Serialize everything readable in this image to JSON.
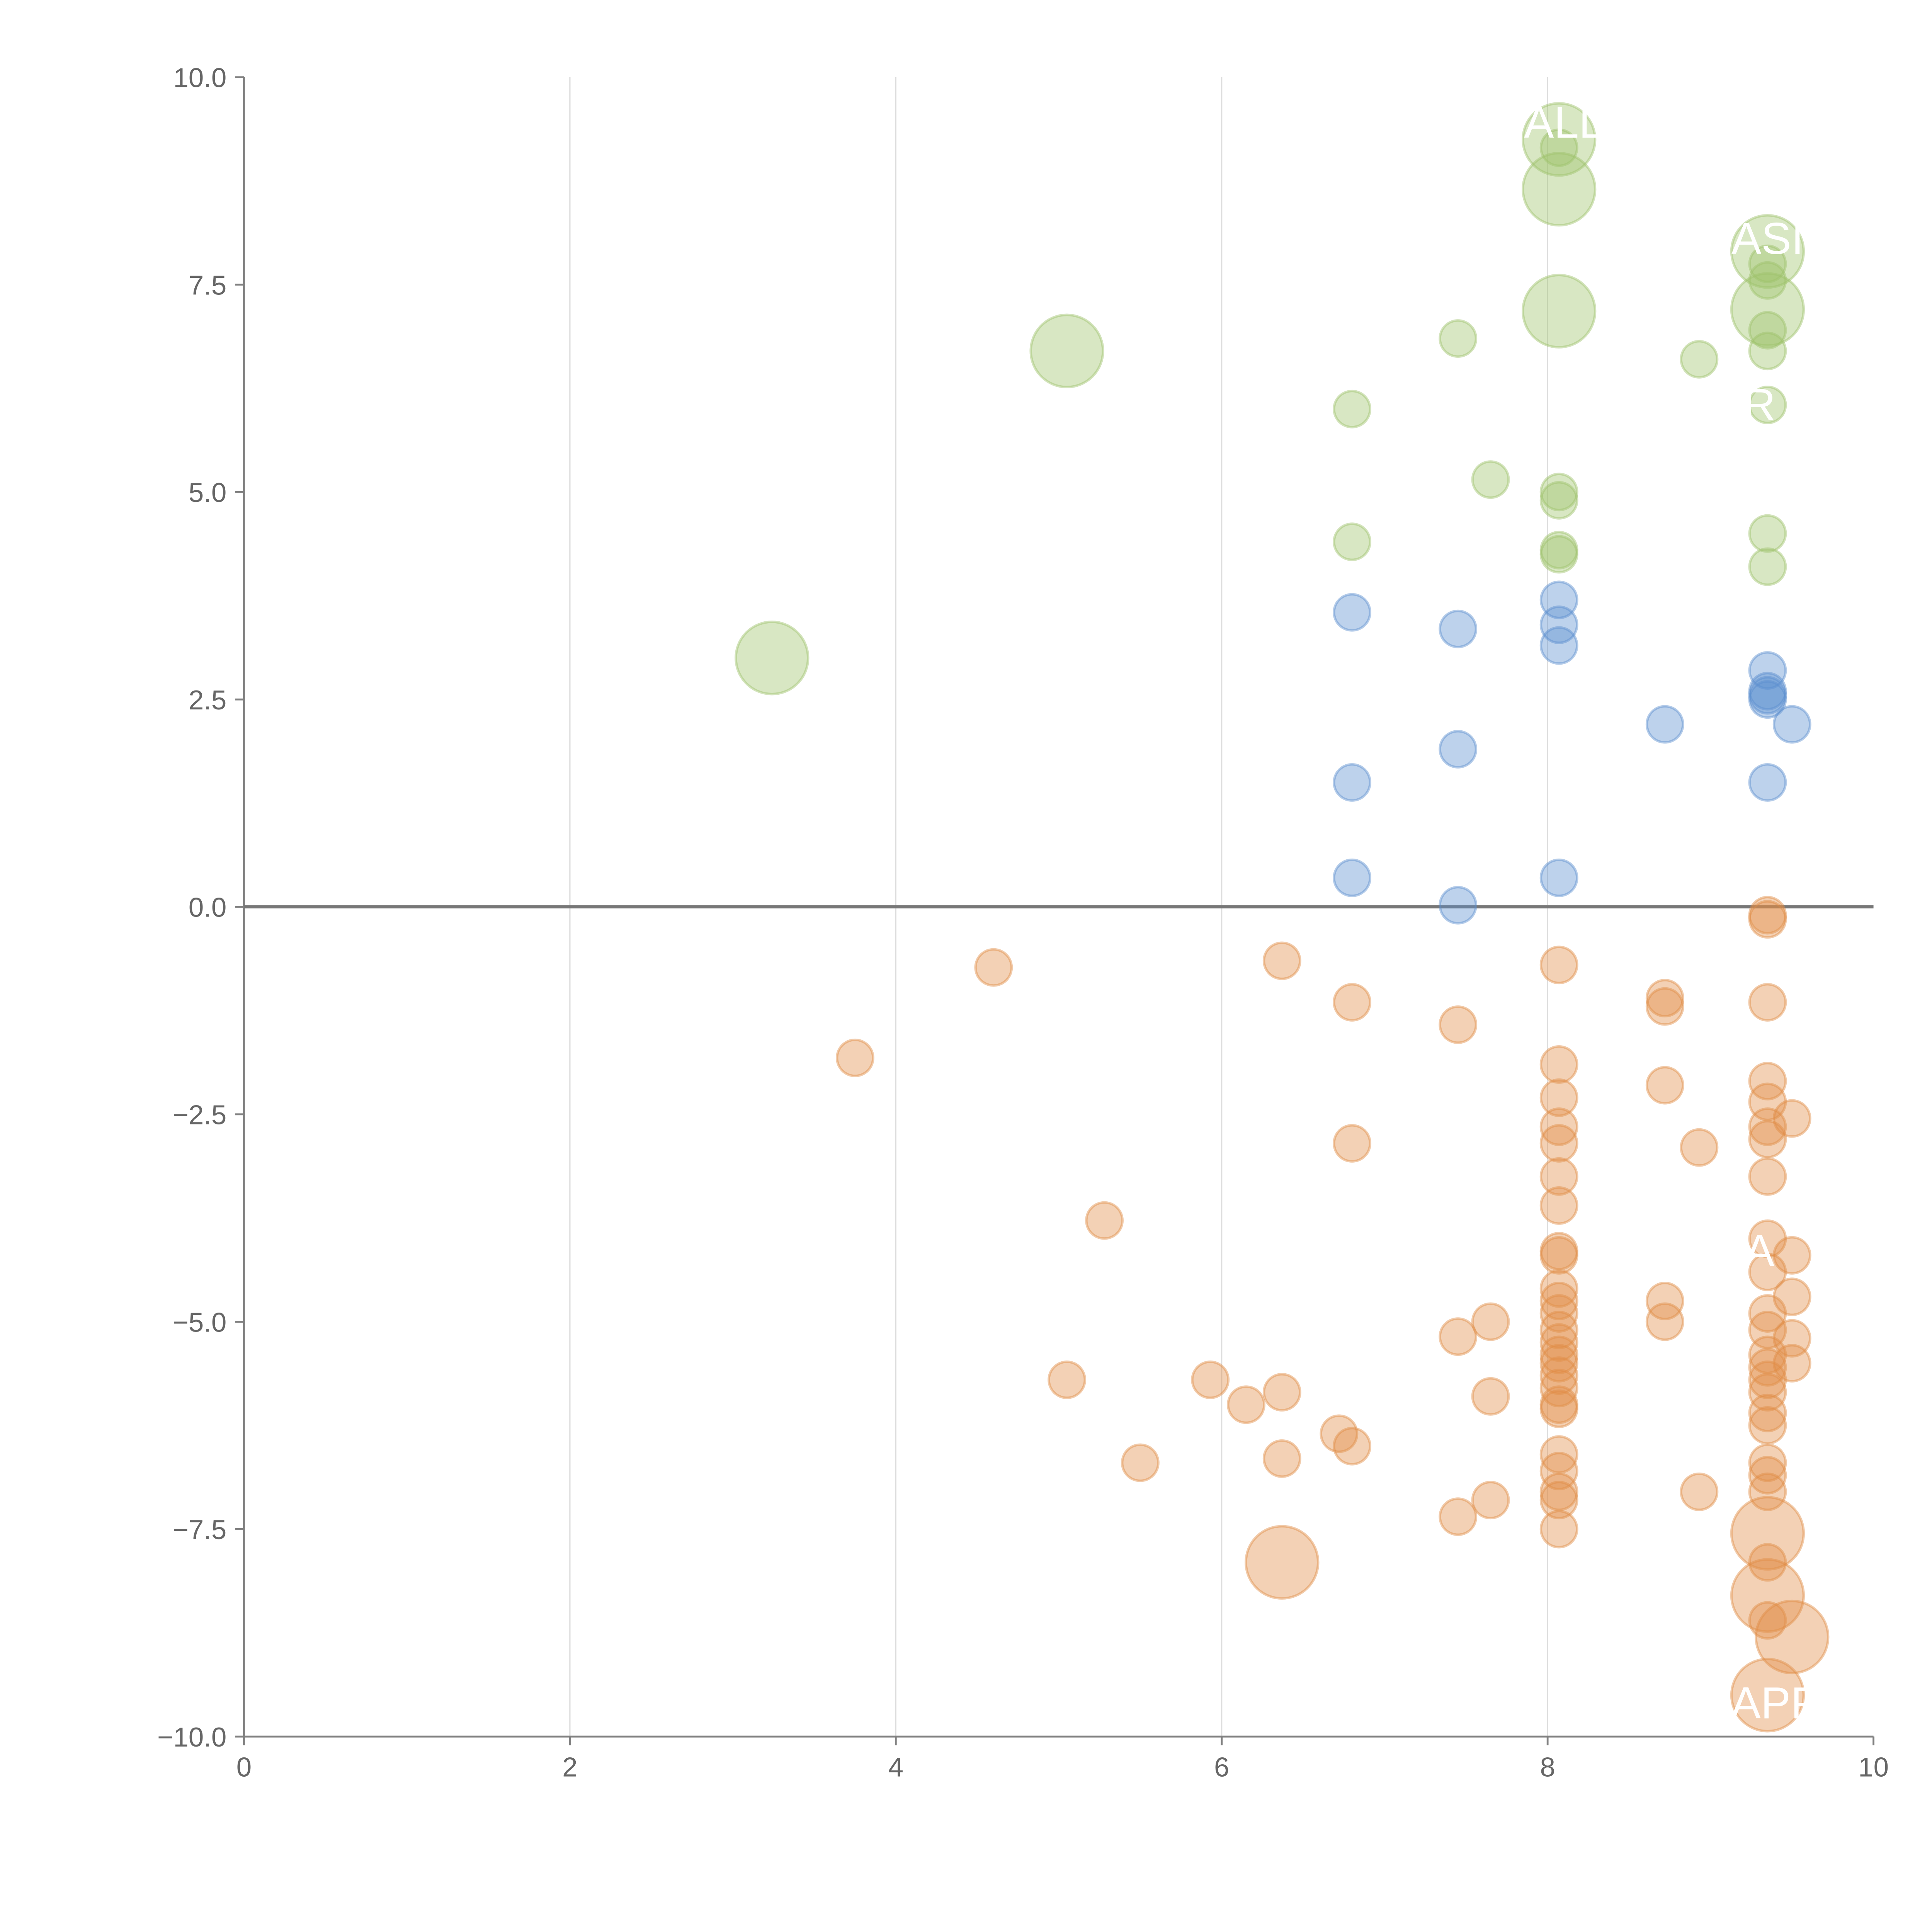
{
  "chart_data": {
    "type": "scatter",
    "title": "",
    "xlabel": "",
    "ylabel": "",
    "xlim": [
      0,
      10
    ],
    "ylim": [
      -10,
      10
    ],
    "xticks": [
      0,
      2,
      4,
      6,
      8,
      10
    ],
    "yticks": [
      -10,
      -7.5,
      -5,
      -2.5,
      0,
      2.5,
      5,
      7.5,
      10
    ],
    "ytick_labels": [
      "−10.0",
      "−7.5",
      "−5.0",
      "−2.5",
      "0.0",
      "2.5",
      "5.0",
      "7.5",
      "10.0"
    ],
    "grid": "vertical",
    "zero_line": true,
    "series": [
      {
        "name": "green",
        "color": "#9dc26a",
        "points": [
          [
            3.24,
            3.0,
            3
          ],
          [
            5.05,
            6.7,
            3
          ],
          [
            6.8,
            6.0,
            1
          ],
          [
            6.8,
            4.4,
            1
          ],
          [
            7.45,
            6.85,
            1
          ],
          [
            7.65,
            5.15,
            1
          ],
          [
            8.07,
            9.25,
            3
          ],
          [
            8.07,
            9.15,
            1
          ],
          [
            8.07,
            8.65,
            3
          ],
          [
            8.07,
            7.18,
            3
          ],
          [
            8.07,
            5.0,
            1
          ],
          [
            8.07,
            4.9,
            1
          ],
          [
            8.07,
            4.3,
            1
          ],
          [
            8.07,
            4.25,
            1
          ],
          [
            8.93,
            6.6,
            1
          ],
          [
            9.35,
            7.9,
            3
          ],
          [
            9.35,
            7.75,
            1
          ],
          [
            9.35,
            7.55,
            1
          ],
          [
            9.35,
            7.2,
            3
          ],
          [
            9.35,
            6.95,
            1
          ],
          [
            9.35,
            6.7,
            1
          ],
          [
            9.35,
            6.05,
            1
          ],
          [
            9.35,
            4.5,
            1
          ],
          [
            9.35,
            4.1,
            1
          ]
        ]
      },
      {
        "name": "blue",
        "color": "#5b8fcf",
        "points": [
          [
            6.8,
            3.55,
            1
          ],
          [
            6.8,
            1.5,
            1
          ],
          [
            6.8,
            0.35,
            1
          ],
          [
            7.45,
            3.35,
            1
          ],
          [
            7.45,
            1.9,
            1
          ],
          [
            7.45,
            0.02,
            1
          ],
          [
            8.07,
            3.7,
            1
          ],
          [
            8.07,
            3.4,
            1
          ],
          [
            8.07,
            3.15,
            1
          ],
          [
            8.07,
            0.35,
            1
          ],
          [
            8.72,
            2.2,
            1
          ],
          [
            9.35,
            2.85,
            1
          ],
          [
            9.35,
            2.6,
            1
          ],
          [
            9.35,
            2.55,
            1
          ],
          [
            9.35,
            2.5,
            1
          ],
          [
            9.35,
            1.5,
            1
          ],
          [
            9.5,
            2.2,
            1
          ]
        ]
      },
      {
        "name": "orange",
        "color": "#e08b45",
        "points": [
          [
            3.75,
            -1.82,
            1
          ],
          [
            4.6,
            -0.73,
            1
          ],
          [
            5.05,
            -5.7,
            1
          ],
          [
            5.28,
            -3.78,
            1
          ],
          [
            5.5,
            -6.7,
            1
          ],
          [
            5.93,
            -5.7,
            1
          ],
          [
            6.15,
            -6.0,
            1
          ],
          [
            6.37,
            -0.65,
            1
          ],
          [
            6.37,
            -5.85,
            1
          ],
          [
            6.37,
            -6.65,
            1
          ],
          [
            6.37,
            -7.9,
            3
          ],
          [
            6.72,
            -6.35,
            1
          ],
          [
            6.8,
            -1.15,
            1
          ],
          [
            6.8,
            -2.85,
            1
          ],
          [
            6.8,
            -6.5,
            1
          ],
          [
            7.45,
            -1.42,
            1
          ],
          [
            7.45,
            -5.18,
            1
          ],
          [
            7.45,
            -7.35,
            1
          ],
          [
            7.65,
            -5.0,
            1
          ],
          [
            7.65,
            -5.9,
            1
          ],
          [
            7.65,
            -7.15,
            1
          ],
          [
            8.07,
            -0.7,
            1
          ],
          [
            8.07,
            -1.9,
            1
          ],
          [
            8.07,
            -2.3,
            1
          ],
          [
            8.07,
            -2.65,
            1
          ],
          [
            8.07,
            -2.85,
            1
          ],
          [
            8.07,
            -3.25,
            1
          ],
          [
            8.07,
            -3.6,
            1
          ],
          [
            8.07,
            -4.15,
            1
          ],
          [
            8.07,
            -4.2,
            1
          ],
          [
            8.07,
            -4.6,
            1
          ],
          [
            8.07,
            -4.75,
            1
          ],
          [
            8.07,
            -4.9,
            1
          ],
          [
            8.07,
            -5.1,
            1
          ],
          [
            8.07,
            -5.25,
            1
          ],
          [
            8.07,
            -5.4,
            1
          ],
          [
            8.07,
            -5.5,
            1
          ],
          [
            8.07,
            -5.65,
            1
          ],
          [
            8.07,
            -5.8,
            1
          ],
          [
            8.07,
            -6.0,
            1
          ],
          [
            8.07,
            -6.05,
            1
          ],
          [
            8.07,
            -6.6,
            1
          ],
          [
            8.07,
            -6.8,
            1
          ],
          [
            8.07,
            -7.05,
            1
          ],
          [
            8.07,
            -7.15,
            1
          ],
          [
            8.07,
            -7.5,
            1
          ],
          [
            8.72,
            -1.1,
            1
          ],
          [
            8.72,
            -1.2,
            1
          ],
          [
            8.72,
            -2.15,
            1
          ],
          [
            8.72,
            -4.75,
            1
          ],
          [
            8.72,
            -5.0,
            1
          ],
          [
            8.93,
            -2.9,
            1
          ],
          [
            8.93,
            -7.05,
            1
          ],
          [
            9.35,
            -0.1,
            1
          ],
          [
            9.35,
            -0.15,
            1
          ],
          [
            9.35,
            -1.15,
            1
          ],
          [
            9.35,
            -2.1,
            1
          ],
          [
            9.35,
            -2.35,
            1
          ],
          [
            9.35,
            -2.65,
            1
          ],
          [
            9.35,
            -2.8,
            1
          ],
          [
            9.35,
            -3.25,
            1
          ],
          [
            9.35,
            -4.0,
            1
          ],
          [
            9.35,
            -4.4,
            1
          ],
          [
            9.35,
            -4.9,
            1
          ],
          [
            9.35,
            -5.1,
            1
          ],
          [
            9.35,
            -5.4,
            1
          ],
          [
            9.35,
            -5.55,
            1
          ],
          [
            9.35,
            -5.7,
            1
          ],
          [
            9.35,
            -5.85,
            1
          ],
          [
            9.35,
            -6.1,
            1
          ],
          [
            9.35,
            -6.25,
            1
          ],
          [
            9.35,
            -6.7,
            1
          ],
          [
            9.35,
            -6.85,
            1
          ],
          [
            9.35,
            -7.05,
            1
          ],
          [
            9.35,
            -7.55,
            3
          ],
          [
            9.35,
            -7.9,
            1
          ],
          [
            9.35,
            -8.3,
            3
          ],
          [
            9.35,
            -8.6,
            1
          ],
          [
            9.35,
            -9.5,
            3
          ],
          [
            9.5,
            -2.55,
            1
          ],
          [
            9.5,
            -4.2,
            1
          ],
          [
            9.5,
            -4.7,
            1
          ],
          [
            9.5,
            -5.2,
            1
          ],
          [
            9.5,
            -5.5,
            1
          ],
          [
            9.5,
            -8.8,
            3
          ]
        ]
      }
    ],
    "annotations": [
      {
        "text": "ALL",
        "x": 8.1,
        "y": 9.45
      },
      {
        "text": "ASI",
        "x": 9.35,
        "y": 8.05
      },
      {
        "text": "R",
        "x": 9.3,
        "y": 6.05
      },
      {
        "text": "A",
        "x": 9.3,
        "y": -4.15
      },
      {
        "text": "APP",
        "x": 9.4,
        "y": -9.6
      }
    ]
  }
}
